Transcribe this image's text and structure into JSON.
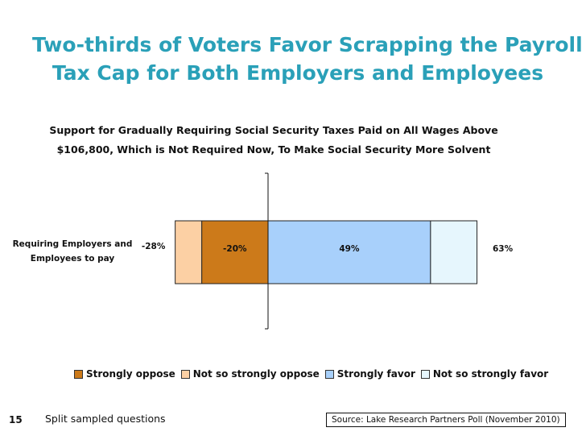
{
  "title_lines": [
    "Two-thirds of Voters Favor Scrapping the Payroll",
    "Tax Cap for Both Employers and Employees"
  ],
  "footer": {
    "slide_number": "15",
    "note": "Split sampled questions",
    "source": "Source: Lake Research Partners Poll (November 2010)"
  },
  "chart_data": {
    "type": "bar",
    "orientation": "horizontal",
    "stacked": "diverging",
    "title_lines": [
      "Support for Gradually Requiring Social Security Taxes Paid on All Wages Above",
      "$106,800, Which is Not Required Now, To Make Social Security More Solvent"
    ],
    "categories": [
      "Requiring Employers and Employees to pay"
    ],
    "category_label_lines": [
      "Requiring Employers and",
      "Employees to pay"
    ],
    "series": [
      {
        "name": "Strongly oppose",
        "values": [
          -20
        ],
        "color": "#cc7a1a"
      },
      {
        "name": "Not so strongly oppose",
        "values": [
          -8
        ],
        "color": "#fcd0a4"
      },
      {
        "name": "Strongly favor",
        "values": [
          49
        ],
        "color": "#a8d0fb"
      },
      {
        "name": "Not so strongly favor",
        "values": [
          14
        ],
        "color": "#e6f6fd"
      }
    ],
    "data_labels": {
      "strongly_oppose": "-20%",
      "strongly_favor": "49%",
      "total_oppose": "-28%",
      "total_favor": "63%"
    },
    "xlim": [
      -28,
      66
    ],
    "grid": false,
    "legend_position": "bottom"
  }
}
